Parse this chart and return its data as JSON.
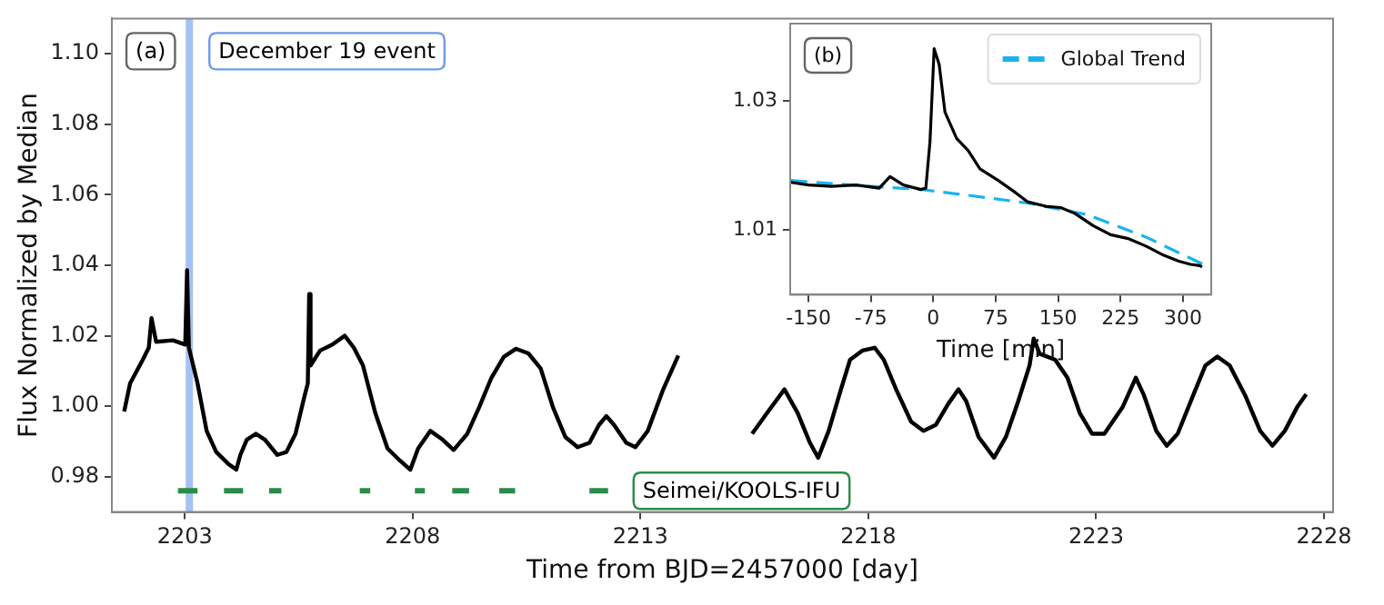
{
  "chart_data": [
    {
      "type": "line",
      "xlabel": "Time from BJD=2457000 [day]",
      "ylabel": "Flux Normalized by Median",
      "xlim": [
        2201.4,
        2228.2
      ],
      "ylim": [
        0.97,
        1.11
      ],
      "xticks": [
        2203,
        2208,
        2213,
        2218,
        2223,
        2228
      ],
      "yticks": [
        0.98,
        {
          "value": 1.0,
          "label": "1.00"
        },
        1.02,
        1.04,
        1.06,
        1.08,
        {
          "value": 1.1,
          "label": "1.10"
        }
      ],
      "annotations": [
        "(a)"
      ],
      "bands": [
        {
          "axis": "x",
          "from": 2203.02,
          "to": 2203.18,
          "label": "December 19 event",
          "color": "#a4c2f4"
        }
      ],
      "marker": "none",
      "line_style": "solid",
      "series": [
        {
          "color": "#000000",
          "x": [
            2201.67,
            2201.8,
            2202.07,
            2202.21,
            2202.27,
            2202.37,
            2202.74,
            2203.01,
            2203.05,
            2203.09,
            2203.28,
            2203.48,
            2203.69,
            2203.95,
            2204.13,
            2204.22,
            2204.36,
            2204.56,
            2204.76,
            2205.03,
            2205.23,
            2205.43,
            2205.63,
            2205.7,
            2205.73,
            2205.76,
            2205.97,
            2206.24,
            2206.51,
            2206.71,
            2206.91,
            2207.18,
            2207.45,
            2207.72,
            2207.95,
            2208.12,
            2208.39,
            2208.66,
            2208.9,
            2209.2,
            2209.46,
            2209.73,
            2210.0,
            2210.27,
            2210.54,
            2210.81,
            2211.08,
            2211.35,
            2211.62,
            2211.88,
            2212.09,
            2212.25,
            2212.42,
            2212.69,
            2212.89,
            2213.16,
            2213.5,
            2213.83,
            2214.6,
            2215.45,
            2215.78,
            2216.16,
            2216.45,
            2216.72,
            2216.9,
            2217.13,
            2217.4,
            2217.6,
            2217.87,
            2218.14,
            2218.34,
            2218.61,
            2218.94,
            2219.21,
            2219.48,
            2219.75,
            2219.98,
            2220.15,
            2220.42,
            2220.76,
            2221.02,
            2221.29,
            2221.54,
            2221.63,
            2221.76,
            2222.1,
            2222.37,
            2222.64,
            2222.91,
            2223.18,
            2223.58,
            2223.87,
            2224.05,
            2224.32,
            2224.55,
            2224.79,
            2225.13,
            2225.4,
            2225.66,
            2225.93,
            2226.27,
            2226.6,
            2226.87,
            2227.14,
            2227.41,
            2227.61
          ],
          "values": [
            0.9985,
            1.0065,
            1.013,
            1.0166,
            1.025,
            1.0183,
            1.0187,
            1.0175,
            1.0386,
            1.0166,
            1.0065,
            0.993,
            0.987,
            0.9837,
            0.982,
            0.9862,
            0.9905,
            0.9922,
            0.9905,
            0.9862,
            0.987,
            0.9922,
            1.003,
            1.0065,
            1.0318,
            1.0116,
            1.0158,
            1.0175,
            1.02,
            1.0166,
            1.0116,
            0.9981,
            0.988,
            0.9846,
            0.982,
            0.988,
            0.993,
            0.9905,
            0.9876,
            0.9922,
            0.9997,
            1.0081,
            1.014,
            1.0163,
            1.015,
            1.0107,
            0.9997,
            0.9913,
            0.9884,
            0.9896,
            0.9947,
            0.9972,
            0.9947,
            0.9896,
            0.9884,
            0.993,
            1.0048,
            1.0144,
            null,
            0.9922,
            0.9981,
            1.0048,
            0.9981,
            0.9896,
            0.9854,
            0.993,
            1.0048,
            1.0132,
            1.0158,
            1.0166,
            1.0132,
            1.0048,
            0.9956,
            0.993,
            0.9947,
            1.0006,
            1.0048,
            1.0014,
            0.9913,
            0.9854,
            0.9913,
            1.0014,
            1.0116,
            1.0192,
            1.0149,
            1.0132,
            1.0081,
            0.9981,
            0.9922,
            0.9922,
            0.9997,
            1.0081,
            1.0031,
            0.993,
            0.9888,
            0.9922,
            1.0031,
            1.0116,
            1.0141,
            1.0116,
            1.0031,
            0.993,
            0.9888,
            0.993,
            0.9997,
            1.0034
          ]
        },
        {
          "name": "Seimei/KOOLS-IFU",
          "color": "#2a8c4a",
          "x": [
            2202.85,
            2203.28,
            2203.5,
            2203.86,
            2204.28,
            2204.5,
            2204.85,
            2205.12,
            2206.0,
            2206.84,
            2207.07,
            2207.5,
            2208.05,
            2208.27,
            2208.5,
            2208.87,
            2209.24,
            2209.5,
            2209.9,
            2210.25,
            2211.0,
            2211.88,
            2212.29
          ],
          "values": [
            0.976,
            0.976,
            null,
            0.976,
            0.976,
            null,
            0.976,
            0.976,
            null,
            0.976,
            0.976,
            null,
            0.976,
            0.976,
            null,
            0.976,
            0.976,
            null,
            0.976,
            0.976,
            null,
            0.976,
            0.976
          ]
        }
      ]
    },
    {
      "type": "line",
      "xlabel": "Time [min]",
      "xlim": [
        -172,
        334
      ],
      "ylim": [
        1.0,
        1.042
      ],
      "xticks": [
        -150,
        -75,
        0,
        75,
        150,
        225,
        300
      ],
      "yticks": [
        1.01,
        1.03
      ],
      "annotations": [
        "(b)"
      ],
      "legend": "top right",
      "marker": "none",
      "series": [
        {
          "color": "#000000",
          "line_style": "solid",
          "x": [
            -171,
            -150,
            -122,
            -93,
            -65,
            -52,
            -36,
            -15,
            -9,
            -4,
            1,
            7,
            14,
            28,
            42,
            56,
            78,
            99,
            113,
            135,
            153,
            170,
            192,
            213,
            234,
            256,
            277,
            295,
            309,
            320,
            323
          ],
          "values": [
            1.0174,
            1.017,
            1.0168,
            1.017,
            1.0165,
            1.0183,
            1.017,
            1.0163,
            1.0165,
            1.0237,
            1.0381,
            1.0357,
            1.0283,
            1.0242,
            1.0223,
            1.0195,
            1.0177,
            1.0158,
            1.0144,
            1.0137,
            1.0135,
            1.0126,
            1.0107,
            1.0093,
            1.0087,
            1.0075,
            1.0061,
            1.0052,
            1.0047,
            1.0045,
            1.0043
          ]
        },
        {
          "name": "Global Trend",
          "color": "#1ab3f0",
          "line_style": "dashed",
          "x": [
            -171,
            -100,
            -15,
            42,
            113,
            185,
            256,
            334
          ],
          "values": [
            1.0177,
            1.017,
            1.0163,
            1.0154,
            1.0142,
            1.0124,
            1.0089,
            1.0041
          ]
        }
      ]
    }
  ]
}
